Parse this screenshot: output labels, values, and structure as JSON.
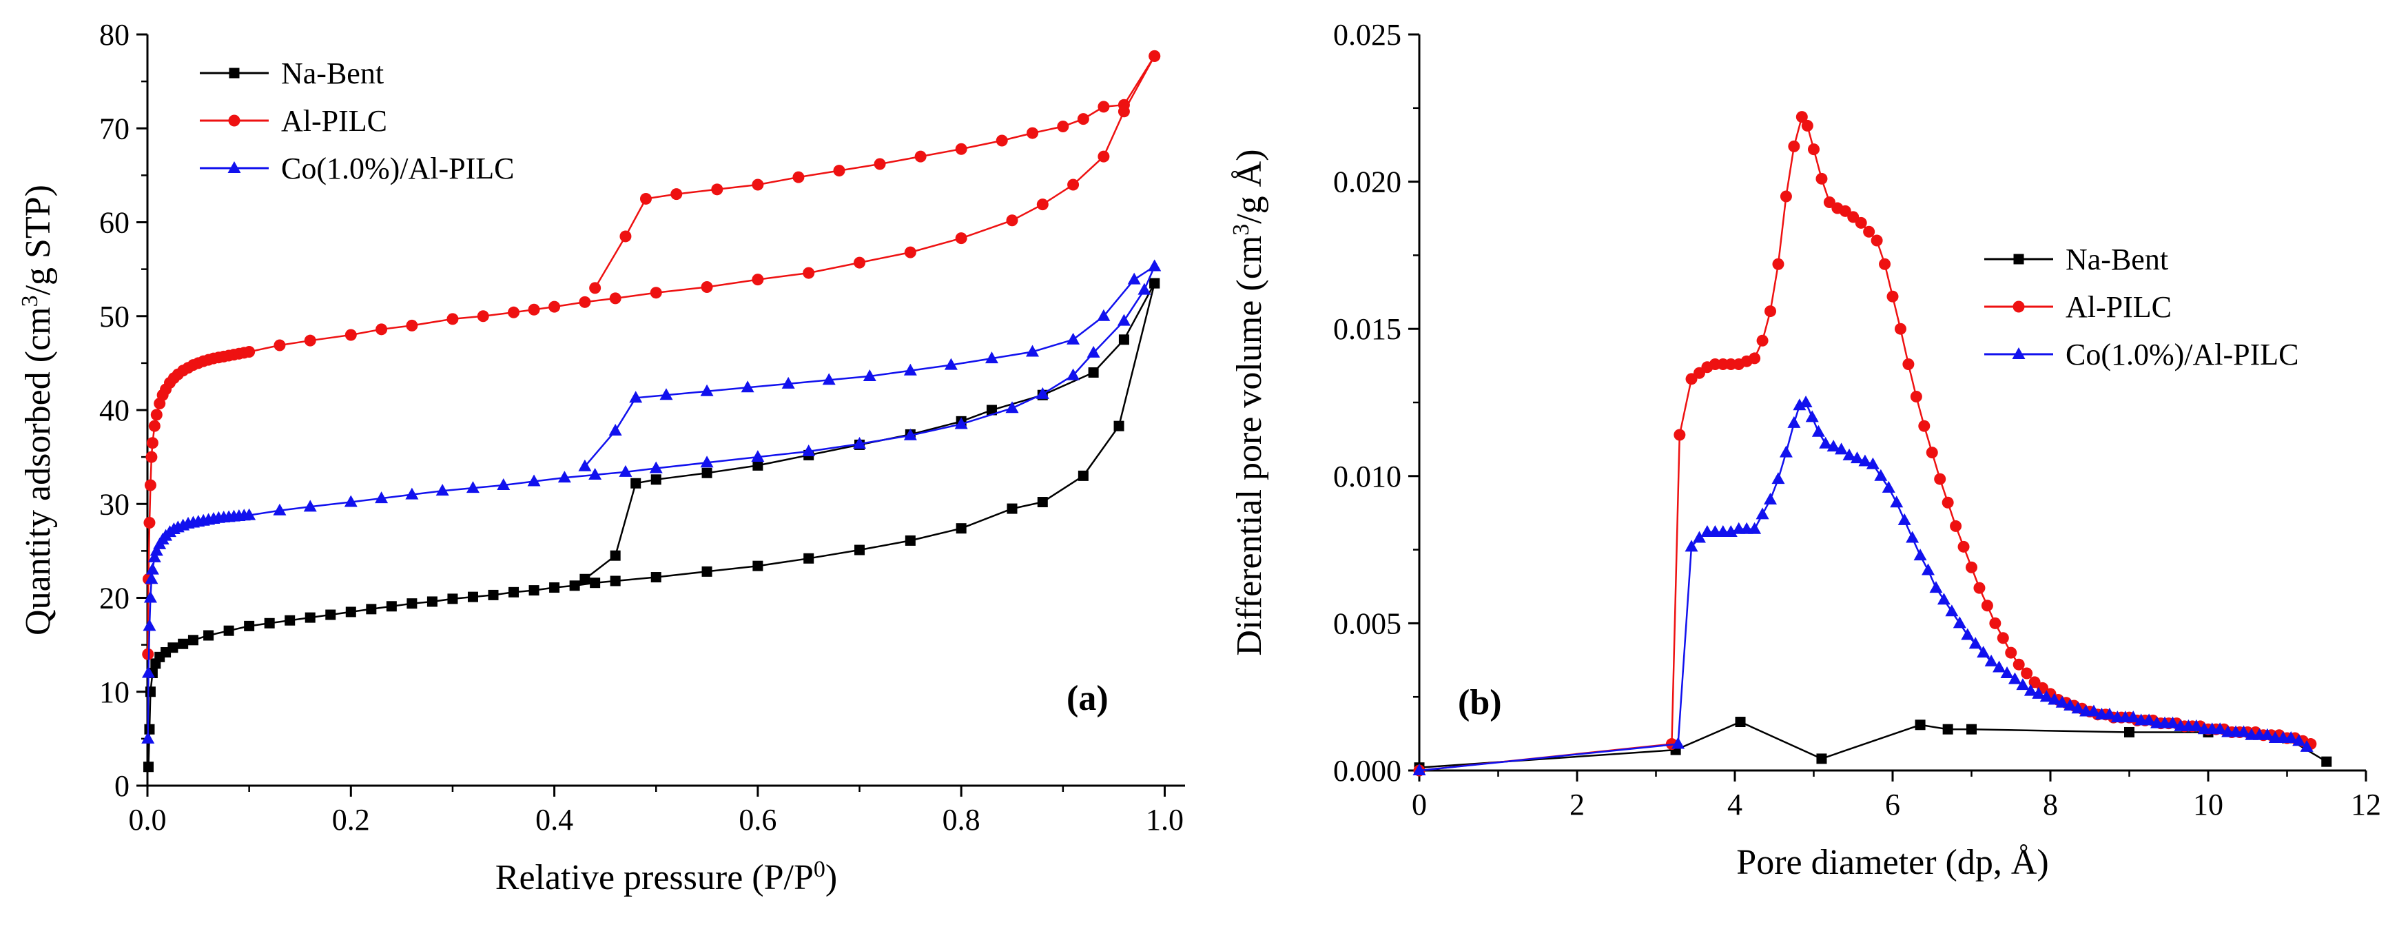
{
  "figure": {
    "panel_a_label": "(a)",
    "panel_b_label": "(b)"
  },
  "colors": {
    "Na-Bent": "#000000",
    "Al-PILC": "#ee1111",
    "Co(1.0%)/Al-PILC": "#1111ee"
  },
  "chart_data": [
    {
      "id": "a",
      "type": "line",
      "panel_label": "(a)",
      "xlabel": "Relative pressure (P/P0)",
      "xlabel_parts": {
        "main": "Relative pressure (P/P",
        "sup": "0",
        "end": ")"
      },
      "ylabel": "Quantity adsorbed (cm3/g STP)",
      "ylabel_parts": {
        "main": "Quantity adsorbed (cm",
        "sup": "3",
        "end": "/g STP)"
      },
      "xlim": [
        0.0,
        1.02
      ],
      "ylim": [
        0,
        80
      ],
      "xticks": [
        0.0,
        0.2,
        0.4,
        0.6,
        0.8,
        1.0
      ],
      "xtick_labels": [
        "0.0",
        "0.2",
        "0.4",
        "0.6",
        "0.8",
        "1.0"
      ],
      "yticks": [
        0,
        10,
        20,
        30,
        40,
        50,
        60,
        70,
        80
      ],
      "ytick_labels": [
        "0",
        "10",
        "20",
        "30",
        "40",
        "50",
        "60",
        "70",
        "80"
      ],
      "legend": {
        "position": "top-left",
        "entries": [
          "Na-Bent",
          "Al-PILC",
          "Co(1.0%)/Al-PILC"
        ]
      },
      "series": [
        {
          "name": "Na-Bent",
          "marker": "square",
          "adsorption": {
            "x": [
              0.001,
              0.002,
              0.003,
              0.005,
              0.008,
              0.012,
              0.018,
              0.025,
              0.035,
              0.045,
              0.06,
              0.08,
              0.1,
              0.12,
              0.14,
              0.16,
              0.18,
              0.2,
              0.22,
              0.24,
              0.26,
              0.28,
              0.3,
              0.32,
              0.34,
              0.36,
              0.38,
              0.4,
              0.42,
              0.44,
              0.46,
              0.5,
              0.55,
              0.6,
              0.65,
              0.7,
              0.75,
              0.8,
              0.85,
              0.88,
              0.92,
              0.955,
              0.99
            ],
            "y": [
              2,
              6,
              10,
              12,
              13,
              13.7,
              14.2,
              14.7,
              15.1,
              15.5,
              16,
              16.5,
              17,
              17.3,
              17.6,
              17.9,
              18.2,
              18.5,
              18.8,
              19.1,
              19.4,
              19.6,
              19.9,
              20.1,
              20.3,
              20.6,
              20.8,
              21.1,
              21.3,
              21.6,
              21.8,
              22.2,
              22.8,
              23.4,
              24.2,
              25.1,
              26.1,
              27.4,
              29.5,
              30.2,
              33,
              38.3,
              53.5
            ]
          },
          "desorption": {
            "x": [
              0.99,
              0.96,
              0.93,
              0.88,
              0.83,
              0.8,
              0.75,
              0.7,
              0.65,
              0.6,
              0.55,
              0.5,
              0.48,
              0.46,
              0.43
            ],
            "y": [
              53.5,
              47.5,
              44,
              41.6,
              40,
              38.8,
              37.4,
              36.3,
              35.2,
              34.1,
              33.3,
              32.6,
              32.2,
              24.5,
              22
            ]
          }
        },
        {
          "name": "Al-PILC",
          "marker": "circle",
          "adsorption": {
            "x": [
              0.0005,
              0.001,
              0.002,
              0.003,
              0.004,
              0.005,
              0.007,
              0.009,
              0.012,
              0.015,
              0.018,
              0.022,
              0.026,
              0.03,
              0.035,
              0.04,
              0.045,
              0.05,
              0.055,
              0.06,
              0.065,
              0.07,
              0.075,
              0.08,
              0.085,
              0.09,
              0.095,
              0.1,
              0.13,
              0.16,
              0.2,
              0.23,
              0.26,
              0.3,
              0.33,
              0.36,
              0.38,
              0.4,
              0.43,
              0.46,
              0.5,
              0.55,
              0.6,
              0.65,
              0.7,
              0.75,
              0.8,
              0.85,
              0.88,
              0.91,
              0.94,
              0.96,
              0.99
            ],
            "y": [
              14,
              22,
              28,
              32,
              35,
              36.5,
              38.3,
              39.5,
              40.7,
              41.6,
              42.2,
              42.9,
              43.4,
              43.8,
              44.2,
              44.5,
              44.8,
              45,
              45.2,
              45.35,
              45.5,
              45.6,
              45.7,
              45.8,
              45.9,
              46,
              46.1,
              46.2,
              46.9,
              47.4,
              48,
              48.6,
              49,
              49.7,
              50,
              50.4,
              50.7,
              51,
              51.5,
              51.9,
              52.5,
              53.1,
              53.9,
              54.6,
              55.7,
              56.8,
              58.3,
              60.2,
              61.9,
              64,
              67,
              71.8,
              77.7
            ]
          },
          "desorption": {
            "x": [
              0.99,
              0.96,
              0.94,
              0.92,
              0.9,
              0.87,
              0.84,
              0.8,
              0.76,
              0.72,
              0.68,
              0.64,
              0.6,
              0.56,
              0.52,
              0.49,
              0.47,
              0.44
            ],
            "y": [
              77.7,
              72.5,
              72.3,
              71,
              70.2,
              69.5,
              68.7,
              67.8,
              67,
              66.2,
              65.5,
              64.8,
              64,
              63.5,
              63,
              62.5,
              58.5,
              53
            ]
          }
        },
        {
          "name": "Co(1.0%)/Al-PILC",
          "marker": "triangle",
          "adsorption": {
            "x": [
              0.0005,
              0.001,
              0.002,
              0.003,
              0.004,
              0.005,
              0.007,
              0.009,
              0.012,
              0.015,
              0.018,
              0.022,
              0.026,
              0.03,
              0.035,
              0.04,
              0.045,
              0.05,
              0.055,
              0.06,
              0.065,
              0.07,
              0.075,
              0.08,
              0.085,
              0.09,
              0.095,
              0.1,
              0.13,
              0.16,
              0.2,
              0.23,
              0.26,
              0.29,
              0.32,
              0.35,
              0.38,
              0.41,
              0.44,
              0.47,
              0.5,
              0.55,
              0.6,
              0.65,
              0.7,
              0.75,
              0.8,
              0.85,
              0.88,
              0.91,
              0.93,
              0.96,
              0.98,
              0.99
            ],
            "y": [
              5,
              12,
              17,
              20,
              22,
              23,
              24.3,
              25,
              25.7,
              26.2,
              26.6,
              27,
              27.3,
              27.5,
              27.7,
              27.9,
              28,
              28.1,
              28.2,
              28.3,
              28.4,
              28.5,
              28.55,
              28.6,
              28.65,
              28.7,
              28.75,
              28.8,
              29.3,
              29.7,
              30.2,
              30.6,
              31,
              31.4,
              31.7,
              32,
              32.4,
              32.8,
              33.1,
              33.4,
              33.8,
              34.4,
              35,
              35.6,
              36.4,
              37.3,
              38.5,
              40.2,
              41.7,
              43.7,
              46.1,
              49.5,
              52.8,
              55.3
            ]
          },
          "desorption": {
            "x": [
              0.99,
              0.97,
              0.94,
              0.91,
              0.87,
              0.83,
              0.79,
              0.75,
              0.71,
              0.67,
              0.63,
              0.59,
              0.55,
              0.51,
              0.48,
              0.46,
              0.43
            ],
            "y": [
              55.3,
              53.9,
              50,
              47.5,
              46.2,
              45.5,
              44.8,
              44.2,
              43.6,
              43.2,
              42.8,
              42.4,
              42,
              41.6,
              41.3,
              37.8,
              34
            ]
          }
        }
      ]
    },
    {
      "id": "b",
      "type": "line",
      "panel_label": "(b)",
      "xlabel": "Pore diameter (dp, Å)",
      "ylabel": "Differential pore volume (cm3/g Å)",
      "ylabel_parts": {
        "main": "Differential pore volume (cm",
        "sup": "3",
        "end": "/g Å)"
      },
      "xlim": [
        0,
        12
      ],
      "ylim": [
        0,
        0.025
      ],
      "xticks": [
        0,
        2,
        4,
        6,
        8,
        10,
        12
      ],
      "xtick_labels": [
        "0",
        "2",
        "4",
        "6",
        "8",
        "10",
        "12"
      ],
      "yticks": [
        0,
        0.005,
        0.01,
        0.015,
        0.02,
        0.025
      ],
      "ytick_labels": [
        "0.000",
        "0.005",
        "0.010",
        "0.015",
        "0.020",
        "0.025"
      ],
      "legend": {
        "position": "center-right",
        "entries": [
          "Na-Bent",
          "Al-PILC",
          "Co(1.0%)/Al-PILC"
        ]
      },
      "series": [
        {
          "name": "Na-Bent",
          "marker": "square",
          "x": [
            0.0,
            3.25,
            4.07,
            5.1,
            6.35,
            6.7,
            7.0,
            9.0,
            10.0,
            11.0,
            11.5
          ],
          "y": [
            0.0001,
            0.0007,
            0.00165,
            0.0004,
            0.00155,
            0.0014,
            0.0014,
            0.0013,
            0.0013,
            0.0011,
            0.0003
          ]
        },
        {
          "name": "Al-PILC",
          "marker": "circle",
          "x": [
            0.0,
            3.2,
            3.3,
            3.45,
            3.55,
            3.65,
            3.75,
            3.85,
            3.95,
            4.05,
            4.15,
            4.25,
            4.35,
            4.45,
            4.55,
            4.65,
            4.75,
            4.85,
            4.92,
            5.0,
            5.1,
            5.2,
            5.3,
            5.4,
            5.5,
            5.6,
            5.7,
            5.8,
            5.9,
            6.0,
            6.1,
            6.2,
            6.3,
            6.4,
            6.5,
            6.6,
            6.7,
            6.8,
            6.9,
            7.0,
            7.1,
            7.2,
            7.3,
            7.4,
            7.5,
            7.6,
            7.7,
            7.8,
            7.9,
            8.0,
            8.1,
            8.2,
            8.3,
            8.4,
            8.5,
            8.6,
            8.7,
            8.8,
            8.9,
            9.0,
            9.1,
            9.2,
            9.3,
            9.4,
            9.5,
            9.6,
            9.7,
            9.8,
            9.9,
            10.0,
            10.1,
            10.2,
            10.3,
            10.4,
            10.5,
            10.6,
            10.7,
            10.8,
            10.9,
            11.0,
            11.1,
            11.2,
            11.3
          ],
          "y": [
            0.0,
            0.0009,
            0.0114,
            0.0133,
            0.0135,
            0.0137,
            0.0138,
            0.0138,
            0.0138,
            0.0138,
            0.0139,
            0.014,
            0.0146,
            0.0156,
            0.0172,
            0.0195,
            0.0212,
            0.0222,
            0.0219,
            0.0211,
            0.0201,
            0.0193,
            0.0191,
            0.019,
            0.0188,
            0.0186,
            0.0183,
            0.018,
            0.0172,
            0.0161,
            0.015,
            0.0138,
            0.0127,
            0.0117,
            0.0108,
            0.0099,
            0.0091,
            0.0083,
            0.0076,
            0.0069,
            0.0062,
            0.0056,
            0.005,
            0.0045,
            0.004,
            0.0036,
            0.0033,
            0.003,
            0.0028,
            0.0026,
            0.0024,
            0.0023,
            0.0022,
            0.0021,
            0.002,
            0.0019,
            0.0019,
            0.0018,
            0.0018,
            0.0018,
            0.0017,
            0.0017,
            0.0017,
            0.0016,
            0.0016,
            0.0016,
            0.0015,
            0.0015,
            0.0015,
            0.0014,
            0.0014,
            0.0014,
            0.0013,
            0.0013,
            0.0013,
            0.0013,
            0.0012,
            0.0012,
            0.0012,
            0.0011,
            0.0011,
            0.001,
            0.0009
          ]
        },
        {
          "name": "Co(1.0%)/Al-PILC",
          "marker": "triangle",
          "x": [
            0.0,
            3.28,
            3.45,
            3.55,
            3.65,
            3.75,
            3.85,
            3.95,
            4.05,
            4.15,
            4.25,
            4.35,
            4.45,
            4.55,
            4.65,
            4.75,
            4.82,
            4.9,
            4.98,
            5.06,
            5.15,
            5.25,
            5.35,
            5.45,
            5.55,
            5.65,
            5.75,
            5.85,
            5.95,
            6.05,
            6.15,
            6.25,
            6.35,
            6.45,
            6.55,
            6.65,
            6.75,
            6.85,
            6.95,
            7.05,
            7.15,
            7.25,
            7.35,
            7.45,
            7.55,
            7.65,
            7.75,
            7.85,
            7.95,
            8.05,
            8.15,
            8.25,
            8.35,
            8.45,
            8.55,
            8.65,
            8.75,
            8.85,
            8.95,
            9.05,
            9.15,
            9.25,
            9.35,
            9.45,
            9.55,
            9.65,
            9.75,
            9.85,
            9.95,
            10.05,
            10.15,
            10.25,
            10.35,
            10.45,
            10.55,
            10.65,
            10.75,
            10.85,
            10.95,
            11.05,
            11.15,
            11.25
          ],
          "y": [
            0.0,
            0.0009,
            0.0076,
            0.0079,
            0.0081,
            0.0081,
            0.0081,
            0.0081,
            0.0082,
            0.0082,
            0.0082,
            0.0087,
            0.0092,
            0.0099,
            0.0108,
            0.0118,
            0.0124,
            0.0125,
            0.012,
            0.0115,
            0.0111,
            0.011,
            0.0109,
            0.0107,
            0.0106,
            0.0105,
            0.0104,
            0.01,
            0.0096,
            0.0091,
            0.0085,
            0.0079,
            0.0073,
            0.0068,
            0.0062,
            0.0058,
            0.0054,
            0.005,
            0.0046,
            0.0043,
            0.004,
            0.0037,
            0.0035,
            0.0033,
            0.0031,
            0.0029,
            0.0027,
            0.0026,
            0.0025,
            0.0024,
            0.0023,
            0.0022,
            0.0021,
            0.002,
            0.002,
            0.0019,
            0.0019,
            0.0018,
            0.0018,
            0.0018,
            0.0017,
            0.0017,
            0.0016,
            0.0016,
            0.0016,
            0.0015,
            0.0015,
            0.0015,
            0.0014,
            0.0014,
            0.0014,
            0.0013,
            0.0013,
            0.0013,
            0.0012,
            0.0012,
            0.0012,
            0.0011,
            0.0011,
            0.0011,
            0.001,
            0.0008
          ]
        }
      ]
    }
  ]
}
